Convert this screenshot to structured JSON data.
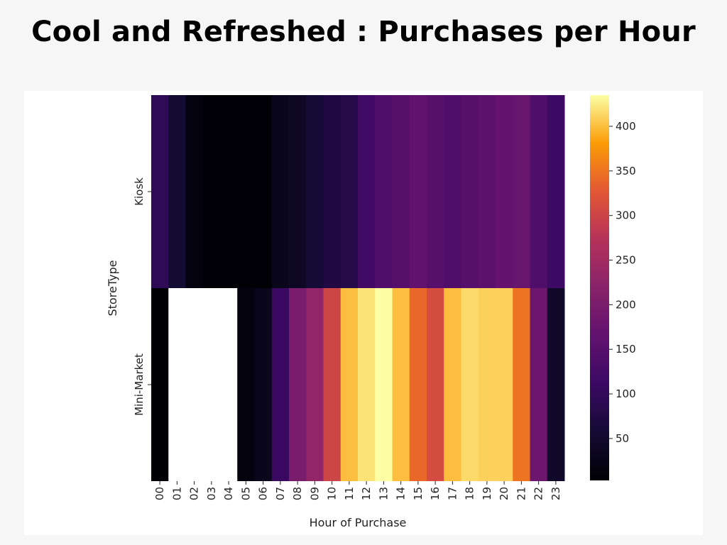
{
  "page": {
    "title": "Cool and Refreshed : Purchases per Hour"
  },
  "chart_data": {
    "type": "heatmap",
    "title": "Cool and Refreshed : Purchases per Hour",
    "xlabel": "Hour of Purchase",
    "ylabel": "StoreType",
    "x_categories": [
      "00",
      "01",
      "02",
      "03",
      "04",
      "05",
      "06",
      "07",
      "08",
      "09",
      "10",
      "11",
      "12",
      "13",
      "14",
      "15",
      "16",
      "17",
      "18",
      "19",
      "20",
      "21",
      "22",
      "23"
    ],
    "y_categories": [
      "Kiosk",
      "Mini-Market"
    ],
    "values": [
      [
        95,
        55,
        15,
        5,
        5,
        5,
        5,
        30,
        40,
        60,
        75,
        80,
        120,
        140,
        150,
        165,
        150,
        140,
        150,
        160,
        170,
        175,
        140,
        115
      ],
      [
        3,
        null,
        null,
        null,
        null,
        15,
        30,
        110,
        200,
        230,
        300,
        400,
        420,
        435,
        400,
        340,
        310,
        400,
        415,
        410,
        410,
        350,
        180,
        45
      ]
    ],
    "colormap": "inferno",
    "missing_color": "#ffffff",
    "colorbar": {
      "range": [
        3,
        435
      ],
      "ticks": [
        50,
        100,
        150,
        200,
        250,
        300,
        350,
        400
      ]
    }
  }
}
